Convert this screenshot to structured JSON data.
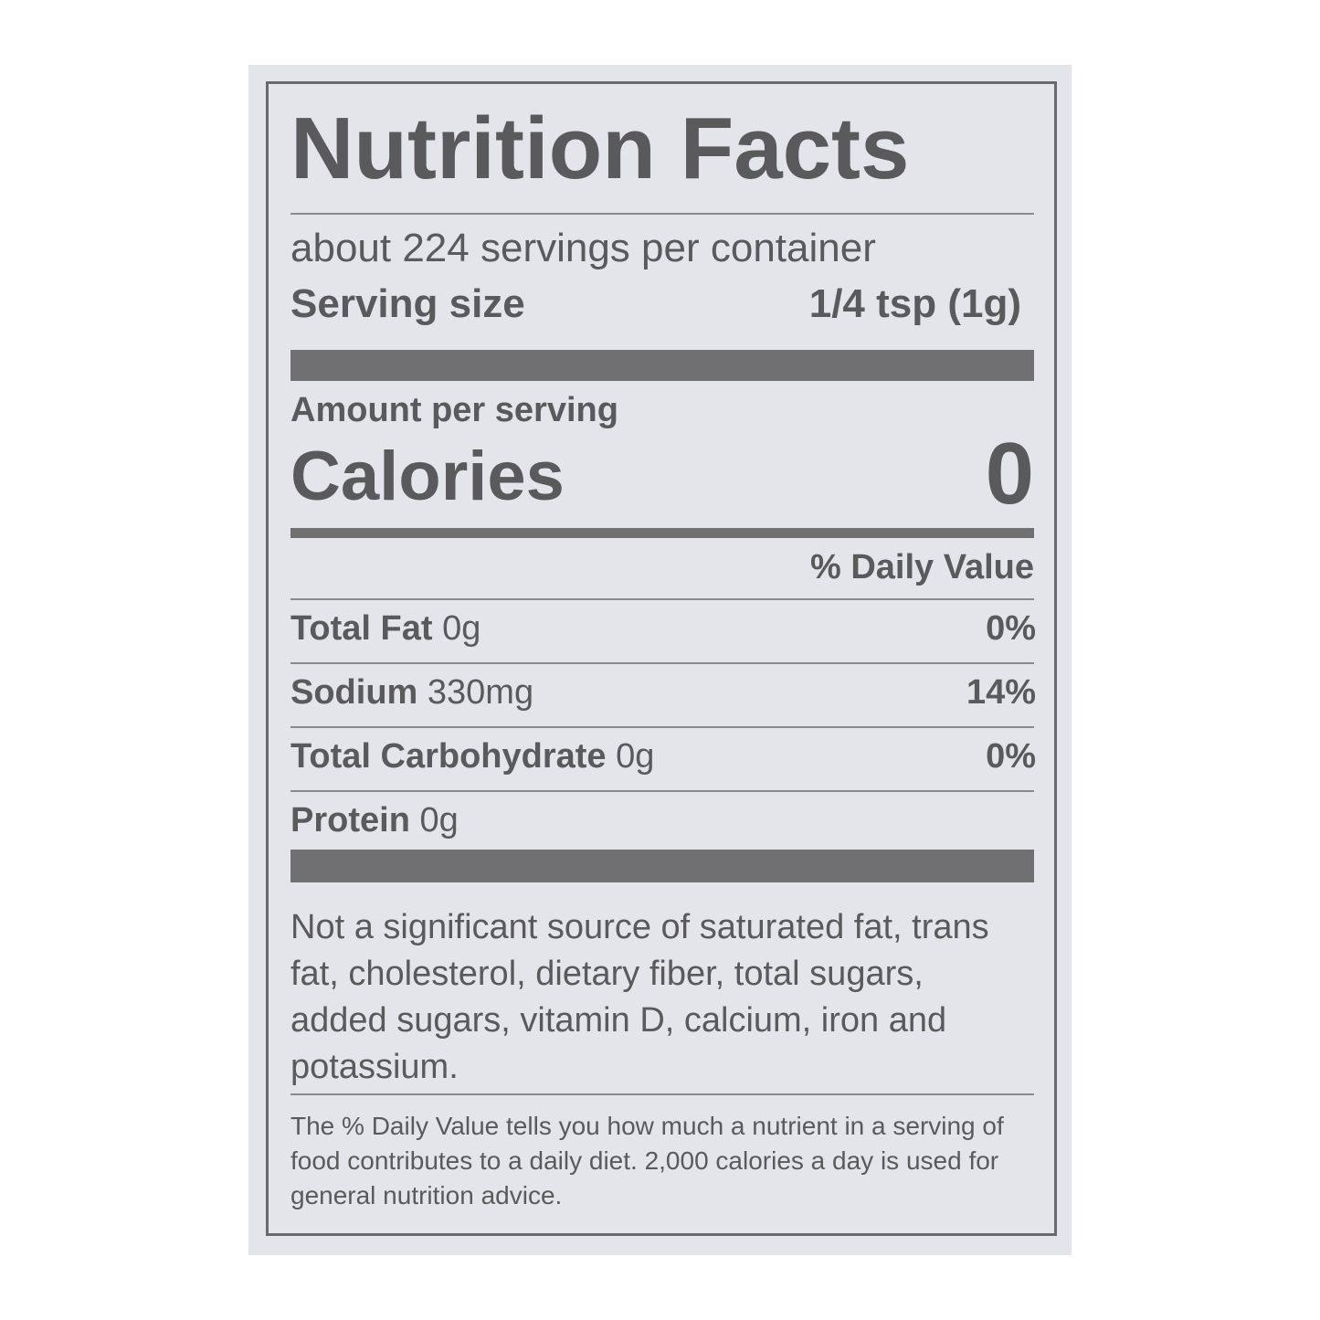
{
  "label": {
    "title": "Nutrition Facts",
    "servings": "about 224 servings per container",
    "serving_size_label": "Serving size",
    "serving_size_value": "1/4 tsp (1g)",
    "amount_per_serving": "Amount per serving",
    "calories_label": "Calories",
    "calories_value": "0",
    "daily_value_header": "% Daily Value",
    "rows": [
      {
        "name": "Total Fat",
        "amount": "0g",
        "dv": "0%"
      },
      {
        "name": "Sodium",
        "amount": "330mg",
        "dv": "14%"
      },
      {
        "name": "Total Carbohydrate",
        "amount": "0g",
        "dv": "0%"
      },
      {
        "name": "Protein",
        "amount": "0g"
      }
    ],
    "note": "Not a significant source of saturated fat, trans fat, cholesterol, dietary fiber, total sugars, added sugars, vitamin D, calcium, iron and potassium.",
    "footnote": "The % Daily Value tells you how much a nutrient in a serving of food contributes to a daily diet. 2,000 calories a day is used for general nutrition advice."
  }
}
